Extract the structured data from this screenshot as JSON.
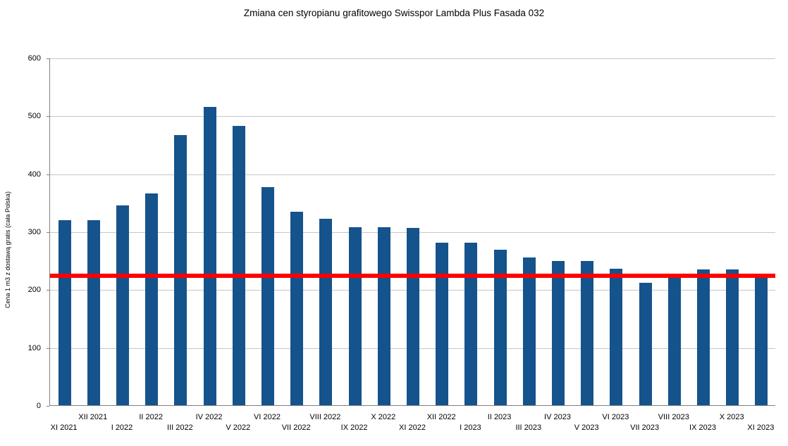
{
  "chart_data": {
    "type": "bar",
    "title": "Zmiana cen styropianu grafitowego Swisspor Lambda Plus Fasada 032",
    "ylabel": "Cena 1 m3 z dostawą gratis (cała Polska)",
    "xlabel": "",
    "categories": [
      "XI 2021",
      "XII 2021",
      "I 2022",
      "II 2022",
      "III 2022",
      "IV 2022",
      "V 2022",
      "VI 2022",
      "VII 2022",
      "VIII 2022",
      "IX 2022",
      "X 2022",
      "XI 2022",
      "XII 2022",
      "I 2023",
      "II 2023",
      "III 2023",
      "IV 2023",
      "V 2023",
      "VI 2023",
      "VII 2023",
      "VIII 2023",
      "IX 2023",
      "X 2023",
      "XI 2023"
    ],
    "values": [
      320,
      320,
      345,
      365,
      467,
      515,
      482,
      377,
      334,
      322,
      307,
      307,
      306,
      280,
      280,
      269,
      255,
      249,
      249,
      236,
      211,
      223,
      234,
      235,
      222
    ],
    "ylim": [
      0,
      600
    ],
    "yticks": [
      0,
      100,
      200,
      300,
      400,
      500,
      600
    ],
    "grid": true,
    "legend_position": "none",
    "bar_color": "#15538c",
    "reference_line": {
      "value": 225,
      "color": "#ff0000",
      "thickness": 6
    }
  }
}
